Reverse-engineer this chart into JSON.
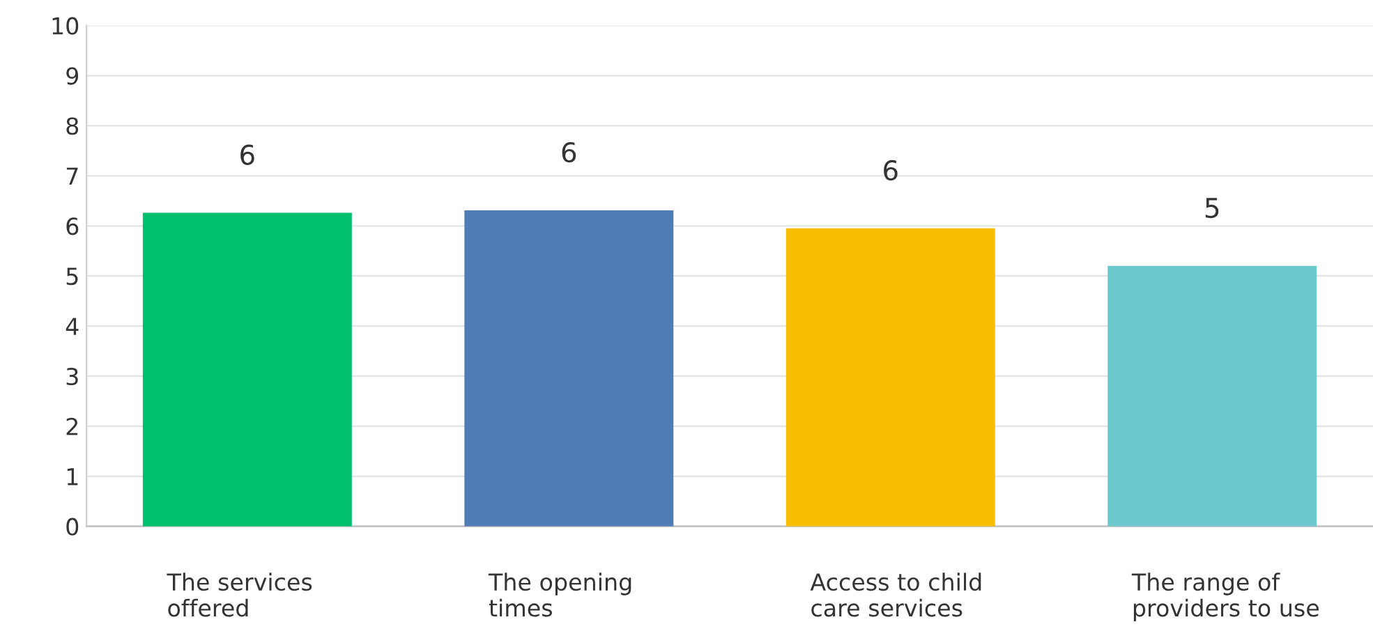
{
  "chart_data": {
    "type": "bar",
    "categories": [
      "The services\noffered",
      "The opening\ntimes",
      "Access to child\ncare services",
      "The range of\nproviders to use"
    ],
    "values": [
      6.26,
      6.31,
      5.95,
      5.2
    ],
    "value_labels": [
      "6",
      "6",
      "6",
      "5"
    ],
    "colors": [
      "#00bf6f",
      "#507cb6",
      "#f9be00",
      "#6bc8cd"
    ],
    "ylim": [
      0,
      10
    ],
    "yticks": [
      0,
      1,
      2,
      3,
      4,
      5,
      6,
      7,
      8,
      9,
      10
    ],
    "grid": "y"
  }
}
